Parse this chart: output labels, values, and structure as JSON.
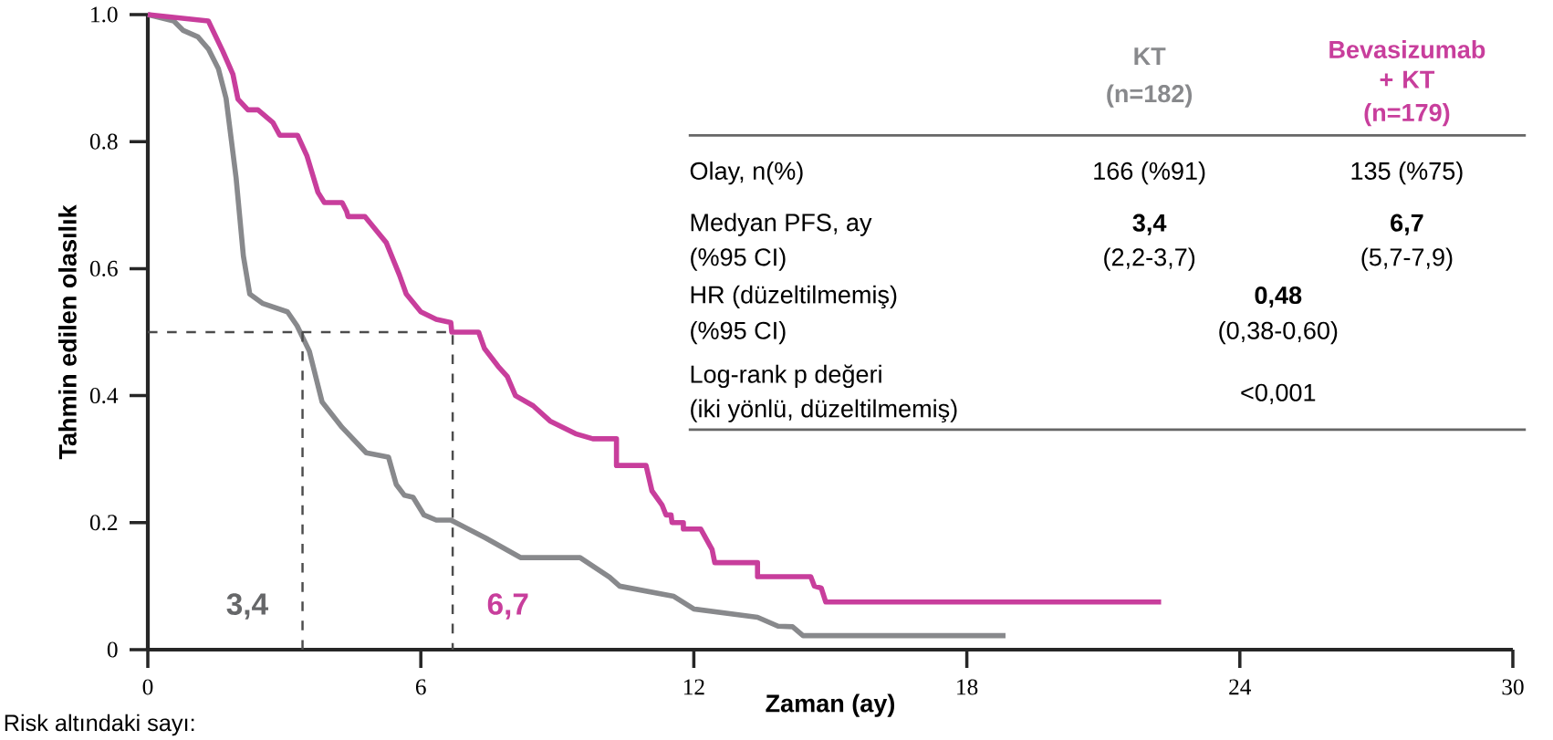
{
  "chart_data": {
    "type": "line",
    "xlabel": "Zaman (ay)",
    "ylabel": "Tahmin edilen olasılık",
    "xlim": [
      0,
      30
    ],
    "xticks": [
      0,
      6,
      12,
      18,
      24,
      30
    ],
    "ylim": [
      0,
      1
    ],
    "yticks": [
      0,
      {
        "value": 0.2,
        "label": "0.2"
      },
      {
        "value": 0.4,
        "label": "0.4"
      },
      {
        "value": 0.6,
        "label": "0.6"
      },
      {
        "value": 0.8,
        "label": "0.8"
      },
      {
        "value": 1,
        "label": "1.0"
      }
    ],
    "grid": false,
    "line_style": "solid",
    "series": [
      {
        "name": "KT",
        "color": "#88898c",
        "x": [
          0,
          0.57,
          0.78,
          1.1,
          1.33,
          1.55,
          1.72,
          1.94,
          2.1,
          2.24,
          2.53,
          3.07,
          3.28,
          3.55,
          3.83,
          4.27,
          4.8,
          5.29,
          5.46,
          5.64,
          5.83,
          6.07,
          6.34,
          6.66,
          7.42,
          8.19,
          9.5,
          10.15,
          10.37,
          11.56,
          12.0,
          13.4,
          13.85,
          14.17,
          14.4,
          18.85
        ],
        "values": [
          1,
          0.99,
          0.975,
          0.965,
          0.946,
          0.915,
          0.868,
          0.743,
          0.62,
          0.56,
          0.545,
          0.532,
          0.51,
          0.47,
          0.39,
          0.35,
          0.31,
          0.303,
          0.26,
          0.243,
          0.24,
          0.212,
          0.204,
          0.204,
          0.176,
          0.145,
          0.145,
          0.114,
          0.1,
          0.084,
          0.064,
          0.051,
          0.037,
          0.036,
          0.022,
          0.022
        ]
      },
      {
        "name": "Bevasizumab + KT",
        "color": "#c83e9c",
        "x": [
          0,
          1.33,
          1.65,
          1.87,
          1.98,
          2.2,
          2.42,
          2.75,
          2.9,
          3.29,
          3.5,
          3.74,
          3.88,
          4.27,
          4.37,
          4.4,
          4.77,
          5.24,
          5.53,
          5.68,
          6.0,
          6.34,
          6.66,
          6.68,
          7.27,
          7.4,
          7.7,
          7.9,
          8.08,
          8.47,
          8.84,
          9.4,
          9.78,
          10.3,
          10.3,
          10.95,
          11.08,
          11.3,
          11.39,
          11.5,
          11.52,
          11.77,
          11.77,
          12.15,
          12.4,
          12.46,
          13.4,
          13.4,
          14.57,
          14.65,
          14.8,
          14.9,
          22.27
        ],
        "values": [
          1,
          0.99,
          0.942,
          0.906,
          0.867,
          0.85,
          0.85,
          0.83,
          0.81,
          0.81,
          0.777,
          0.72,
          0.704,
          0.704,
          0.69,
          0.682,
          0.682,
          0.641,
          0.59,
          0.56,
          0.532,
          0.52,
          0.515,
          0.5,
          0.5,
          0.474,
          0.446,
          0.43,
          0.4,
          0.384,
          0.36,
          0.34,
          0.332,
          0.332,
          0.29,
          0.29,
          0.25,
          0.228,
          0.212,
          0.212,
          0.2,
          0.2,
          0.19,
          0.19,
          0.158,
          0.137,
          0.137,
          0.115,
          0.115,
          0.1,
          0.097,
          0.075,
          0.075
        ]
      },
      {
        "type": "line",
        "line_style": "dashed",
        "color": "#4c4c4c",
        "x": [
          0,
          6.7,
          6.7
        ],
        "values": [
          0.5,
          0.5,
          0
        ]
      },
      {
        "type": "line",
        "line_style": "dashed",
        "color": "#4c4c4c",
        "x": [
          3.4,
          3.4
        ],
        "values": [
          0.5,
          0
        ]
      }
    ],
    "annotations": [
      "(n=182)",
      "(n=179)",
      "Olay, n(%)",
      "166 (%91)",
      "135 (%75)",
      "Medyan PFS, ay",
      "(%95 CI)",
      "3,4",
      "(2,2-3,7)",
      "6,7",
      "(5,7-7,9)",
      "HR (düzeltilmemiş)",
      "(%95 CI)",
      "0,48",
      "(0,38-0,60)",
      "Log-rank  p değeri",
      "(iki yönlü, düzeltilmemiş)",
      "<0,001",
      "Risk altındaki sayı:",
      "3,4",
      "6,7"
    ]
  }
}
